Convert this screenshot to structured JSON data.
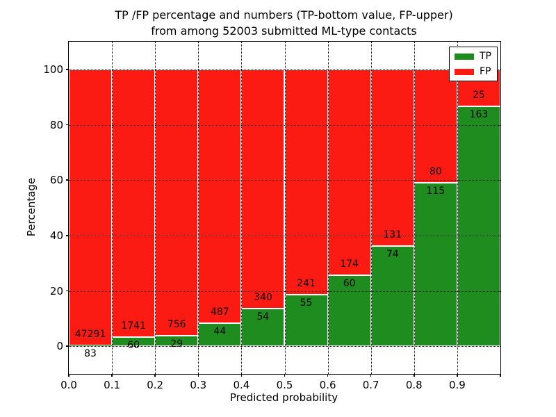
{
  "chart_data": {
    "type": "bar",
    "stacked": true,
    "normalized_to_percent": true,
    "title_line1": "TP /FP percentage and numbers (TP-bottom value, FP-upper)",
    "title_line2": "from among 52003 submitted ML-type contacts",
    "xlabel": "Predicted probability",
    "ylabel": "Percentage",
    "xlim": [
      0.0,
      1.0
    ],
    "ylim": [
      -10,
      110
    ],
    "grid": "dotted",
    "legend_position": "upper right",
    "x_ticks": [
      "0.0",
      "0.1",
      "0.2",
      "0.3",
      "0.4",
      "0.5",
      "0.6",
      "0.7",
      "0.8",
      "0.9"
    ],
    "y_ticks": [
      "0",
      "20",
      "40",
      "60",
      "80",
      "100"
    ],
    "categories": [
      "0.0-0.1",
      "0.1-0.2",
      "0.2-0.3",
      "0.3-0.4",
      "0.4-0.5",
      "0.5-0.6",
      "0.6-0.7",
      "0.7-0.8",
      "0.8-0.9",
      "0.9-1.0"
    ],
    "series": [
      {
        "name": "TP",
        "color": "#1f8c1f",
        "counts": [
          83,
          60,
          29,
          44,
          54,
          55,
          60,
          74,
          115,
          163
        ]
      },
      {
        "name": "FP",
        "color": "#fc1b12",
        "counts": [
          47291,
          1741,
          756,
          487,
          340,
          241,
          174,
          131,
          80,
          25
        ]
      }
    ],
    "tp_percent_of_bin": [
      0.18,
      3.33,
      3.69,
      8.29,
      13.71,
      18.58,
      25.64,
      36.1,
      58.97,
      86.7
    ],
    "legend": [
      {
        "label": "TP",
        "color": "#1f8c1f"
      },
      {
        "label": "FP",
        "color": "#fc1b12"
      }
    ],
    "colors": {
      "tp": "#1f8c1f",
      "fp": "#fc1b12",
      "grid": "#000000",
      "frame": "#000000"
    }
  }
}
